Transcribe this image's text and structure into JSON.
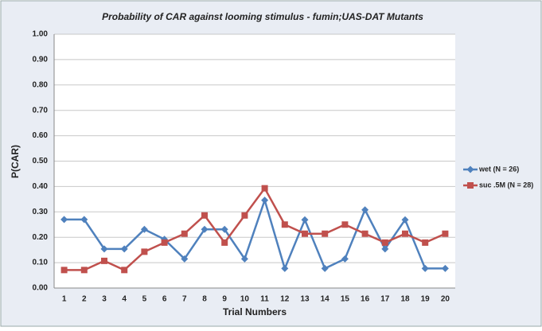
{
  "chart_data": {
    "type": "line",
    "title": "Probability of CAR against looming stimulus - fumin;UAS-DAT Mutants",
    "x_label": "Trial Numbers",
    "y_label": "P(CAR)",
    "categories": [
      "1",
      "2",
      "3",
      "4",
      "5",
      "6",
      "7",
      "8",
      "9",
      "10",
      "11",
      "12",
      "13",
      "14",
      "15",
      "16",
      "17",
      "18",
      "19",
      "20"
    ],
    "series": [
      {
        "name": "wet (N = 26)",
        "color": "#4f81bd",
        "marker": "diamond",
        "values": [
          0.27,
          0.27,
          0.154,
          0.154,
          0.231,
          0.192,
          0.115,
          0.231,
          0.231,
          0.115,
          0.346,
          0.077,
          0.269,
          0.077,
          0.115,
          0.308,
          0.154,
          0.269,
          0.077,
          0.077
        ]
      },
      {
        "name": "suc .5M (N = 28)",
        "color": "#c0504d",
        "marker": "square",
        "values": [
          0.071,
          0.071,
          0.107,
          0.071,
          0.143,
          0.179,
          0.214,
          0.286,
          0.179,
          0.286,
          0.393,
          0.25,
          0.214,
          0.214,
          0.25,
          0.214,
          0.179,
          0.214,
          0.179,
          0.214
        ]
      }
    ],
    "ylim": [
      0,
      1
    ],
    "yticks": [
      {
        "value": 0,
        "label": "0.00"
      },
      {
        "value": 0.1,
        "label": "0.10"
      },
      {
        "value": 0.2,
        "label": "0.20"
      },
      {
        "value": 0.3,
        "label": "0.30"
      },
      {
        "value": 0.4,
        "label": "0.40"
      },
      {
        "value": 0.5,
        "label": "0.50"
      },
      {
        "value": 0.6,
        "label": "0.60"
      },
      {
        "value": 0.7,
        "label": "0.70"
      },
      {
        "value": 0.8,
        "label": "0.80"
      },
      {
        "value": 0.9,
        "label": "0.90"
      },
      {
        "value": 1,
        "label": "1.00"
      }
    ],
    "grid": true,
    "legend": "right"
  }
}
